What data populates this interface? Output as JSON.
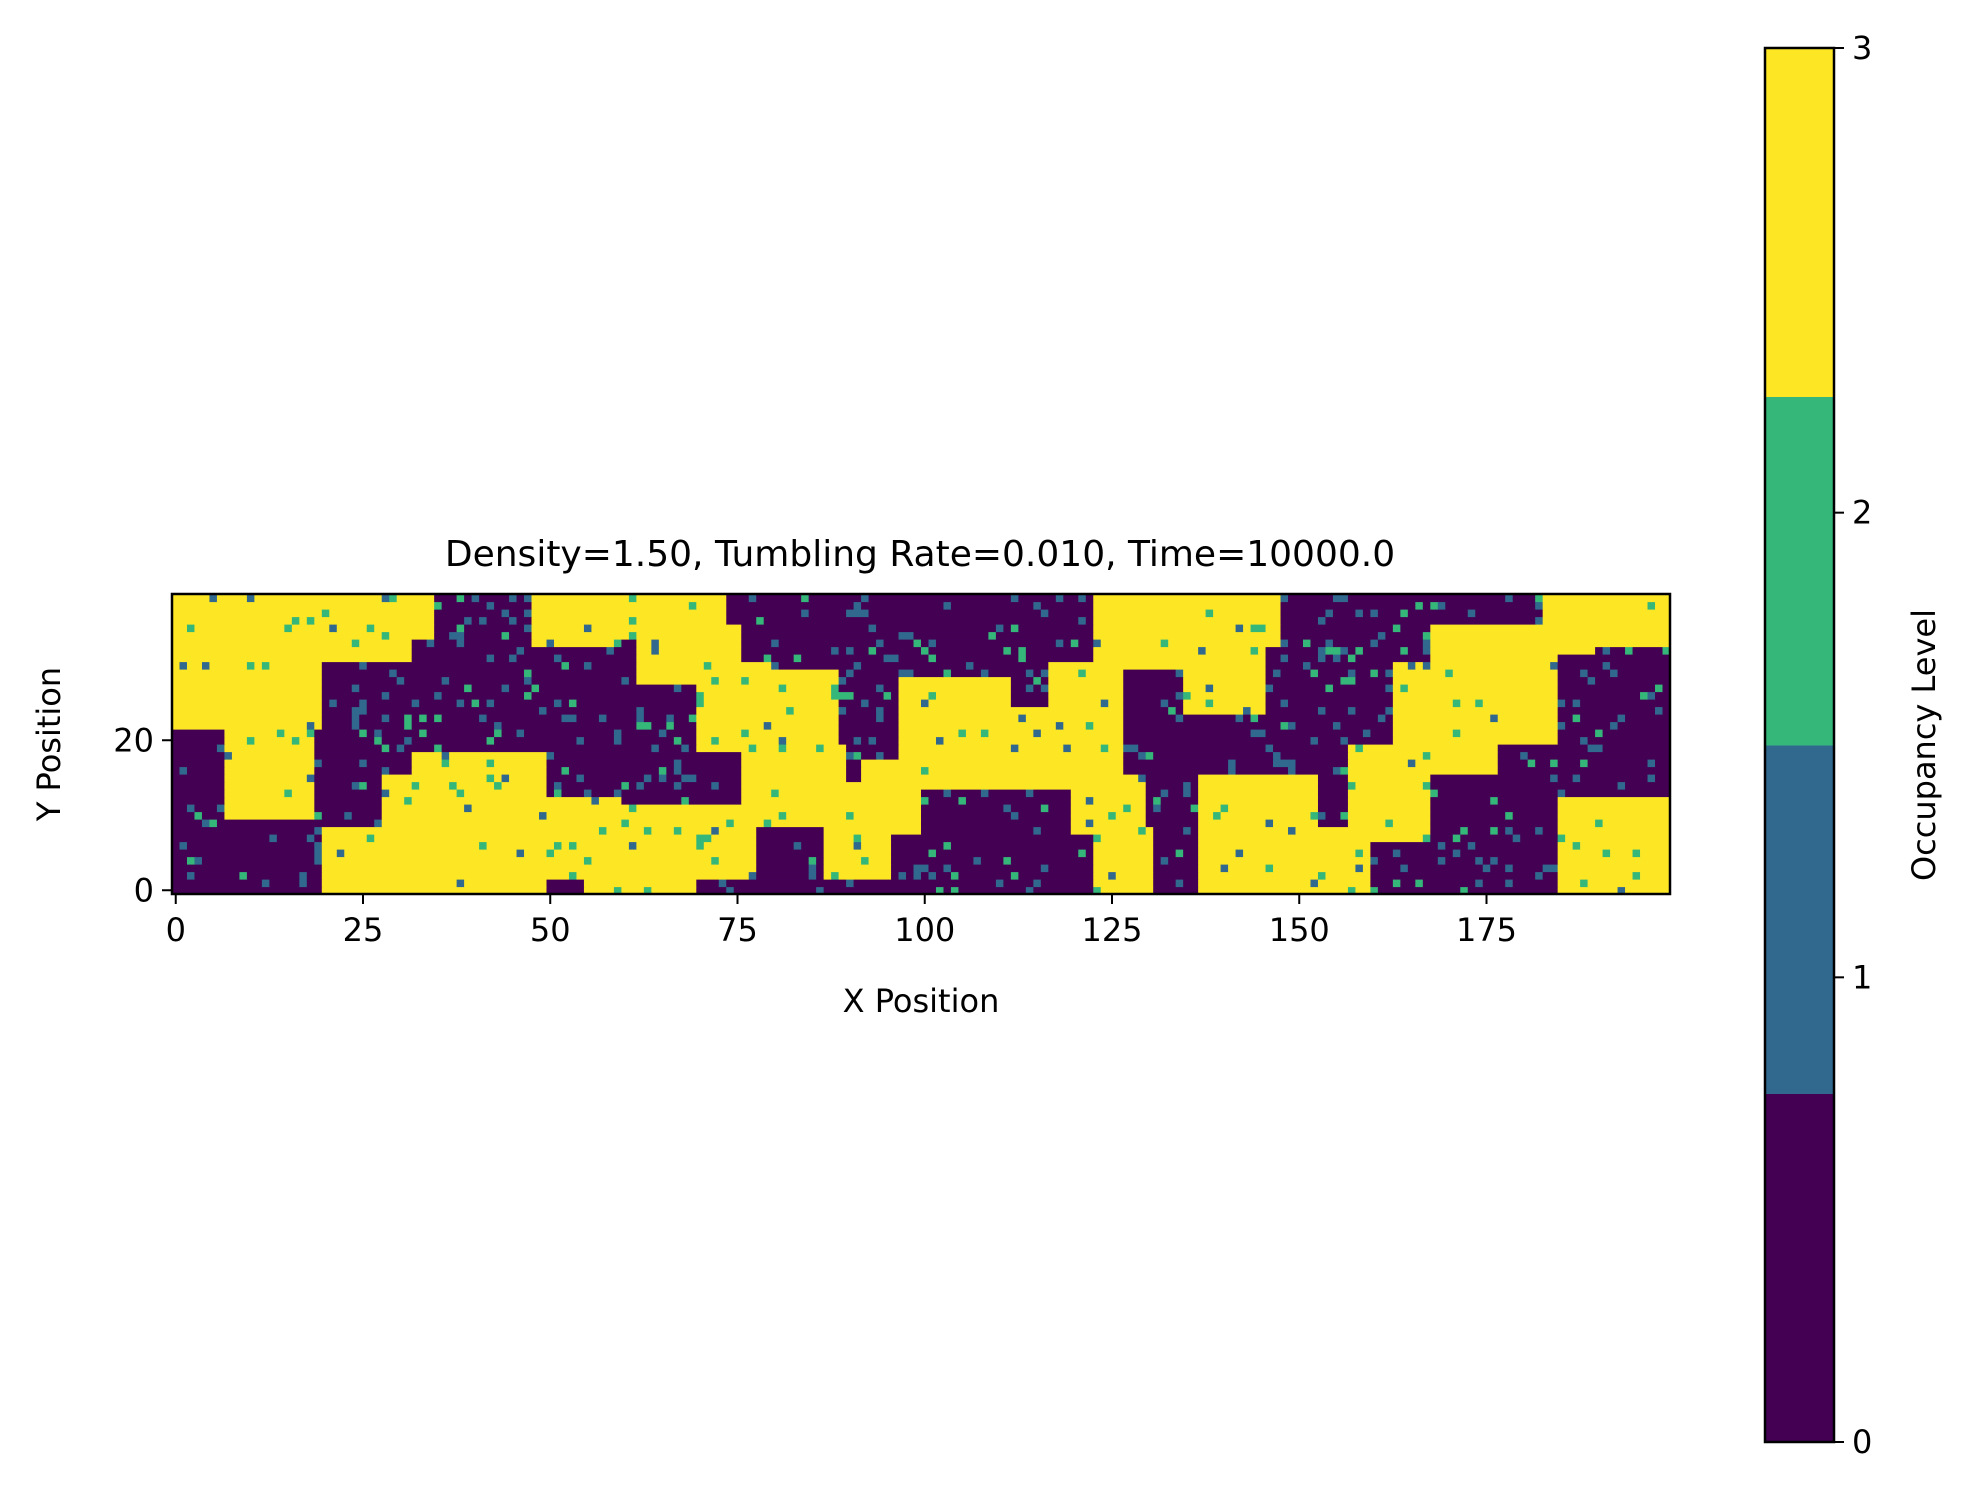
{
  "chart_data": {
    "type": "heatmap",
    "title": "Density=1.50, Tumbling Rate=0.010, Time=10000.0",
    "xlabel": "X Position",
    "ylabel": "Y Position",
    "colorbar_label": "Occupancy Level",
    "grid_width": 200,
    "grid_height": 40,
    "xlim": [
      0,
      200
    ],
    "ylim": [
      0,
      40
    ],
    "x_ticks": [
      0,
      25,
      50,
      75,
      100,
      125,
      150,
      175
    ],
    "y_ticks": [
      0,
      20
    ],
    "x_tick_labels": [
      "0",
      "25",
      "50",
      "75",
      "100",
      "125",
      "150",
      "175"
    ],
    "y_tick_labels": [
      "0",
      "20"
    ],
    "colorbar_ticks": [
      0,
      1,
      2,
      3
    ],
    "colorbar_tick_labels": [
      "0",
      "1",
      "2",
      "3"
    ],
    "levels": [
      0,
      1,
      2,
      3
    ],
    "colors": [
      "#440154",
      "#31688e",
      "#35b779",
      "#fde725"
    ],
    "grid": false,
    "colorbar_position": "right",
    "note_on_values": "cell values estimated from the image; dense clusters of level 3 on a background of level 0 with scattered 1 and 2",
    "regions": [
      {
        "level": 3,
        "x": [
          0,
          9
        ],
        "y": [
          30,
          40
        ]
      },
      {
        "level": 3,
        "x": [
          0,
          20
        ],
        "y": [
          22,
          40
        ]
      },
      {
        "level": 3,
        "x": [
          7,
          19
        ],
        "y": [
          10,
          24
        ]
      },
      {
        "level": 3,
        "x": [
          19,
          32
        ],
        "y": [
          31,
          40
        ]
      },
      {
        "level": 3,
        "x": [
          30,
          35
        ],
        "y": [
          34,
          40
        ]
      },
      {
        "level": 3,
        "x": [
          20,
          29
        ],
        "y": [
          0,
          9
        ]
      },
      {
        "level": 3,
        "x": [
          28,
          42
        ],
        "y": [
          0,
          16
        ]
      },
      {
        "level": 3,
        "x": [
          32,
          50
        ],
        "y": [
          0,
          19
        ]
      },
      {
        "level": 3,
        "x": [
          48,
          60
        ],
        "y": [
          2,
          13
        ]
      },
      {
        "level": 3,
        "x": [
          55,
          70
        ],
        "y": [
          0,
          7
        ]
      },
      {
        "level": 3,
        "x": [
          60,
          78
        ],
        "y": [
          2,
          12
        ]
      },
      {
        "level": 3,
        "x": [
          48,
          60
        ],
        "y": [
          33,
          40
        ]
      },
      {
        "level": 3,
        "x": [
          60,
          74
        ],
        "y": [
          34,
          40
        ]
      },
      {
        "level": 3,
        "x": [
          62,
          76
        ],
        "y": [
          28,
          36
        ]
      },
      {
        "level": 3,
        "x": [
          70,
          80
        ],
        "y": [
          19,
          31
        ]
      },
      {
        "level": 3,
        "x": [
          74,
          89
        ],
        "y": [
          19,
          30
        ]
      },
      {
        "level": 3,
        "x": [
          76,
          90
        ],
        "y": [
          9,
          20
        ]
      },
      {
        "level": 3,
        "x": [
          87,
          96
        ],
        "y": [
          2,
          15
        ]
      },
      {
        "level": 3,
        "x": [
          92,
          100
        ],
        "y": [
          8,
          18
        ]
      },
      {
        "level": 3,
        "x": [
          97,
          112
        ],
        "y": [
          14,
          29
        ]
      },
      {
        "level": 3,
        "x": [
          108,
          127
        ],
        "y": [
          14,
          25
        ]
      },
      {
        "level": 3,
        "x": [
          117,
          127
        ],
        "y": [
          22,
          31
        ]
      },
      {
        "level": 3,
        "x": [
          120,
          130
        ],
        "y": [
          8,
          16
        ]
      },
      {
        "level": 3,
        "x": [
          123,
          131
        ],
        "y": [
          0,
          9
        ]
      },
      {
        "level": 3,
        "x": [
          123,
          137
        ],
        "y": [
          30,
          40
        ]
      },
      {
        "level": 3,
        "x": [
          132,
          148
        ],
        "y": [
          33,
          40
        ]
      },
      {
        "level": 3,
        "x": [
          135,
          146
        ],
        "y": [
          24,
          34
        ]
      },
      {
        "level": 3,
        "x": [
          137,
          153
        ],
        "y": [
          0,
          16
        ]
      },
      {
        "level": 3,
        "x": [
          150,
          160
        ],
        "y": [
          0,
          9
        ]
      },
      {
        "level": 3,
        "x": [
          157,
          168
        ],
        "y": [
          7,
          20
        ]
      },
      {
        "level": 3,
        "x": [
          163,
          177
        ],
        "y": [
          16,
          31
        ]
      },
      {
        "level": 3,
        "x": [
          168,
          185
        ],
        "y": [
          20,
          36
        ]
      },
      {
        "level": 3,
        "x": [
          183,
          190
        ],
        "y": [
          32,
          40
        ]
      },
      {
        "level": 3,
        "x": [
          185,
          200
        ],
        "y": [
          0,
          13
        ]
      },
      {
        "level": 3,
        "x": [
          189,
          200
        ],
        "y": [
          33,
          40
        ]
      }
    ]
  }
}
